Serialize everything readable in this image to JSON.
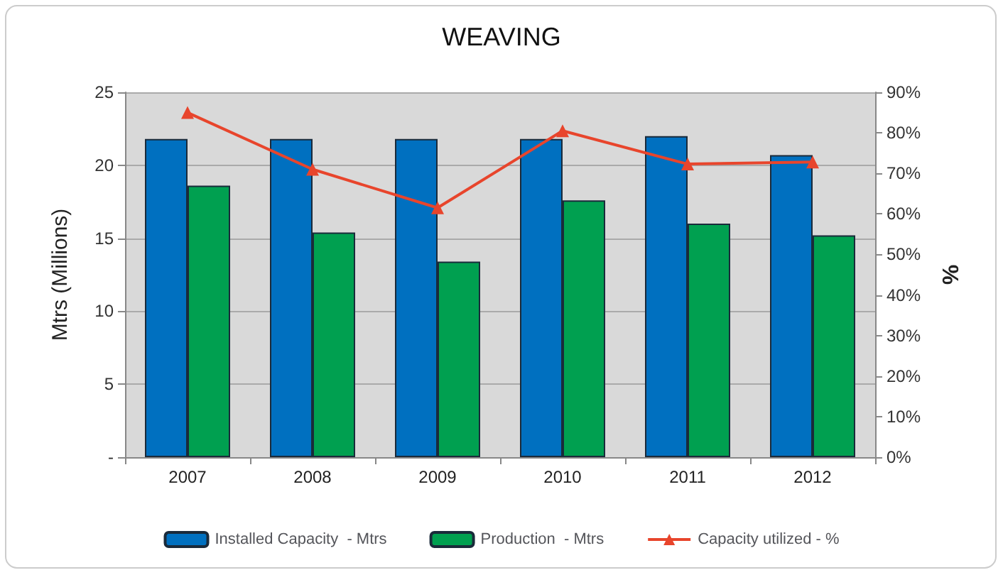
{
  "chart_data": {
    "type": "bar",
    "title": "WEAVING",
    "ylabel": "Mtrs (Millions)",
    "y2label": "%",
    "categories": [
      "2007",
      "2008",
      "2009",
      "2010",
      "2011",
      "2012"
    ],
    "series": [
      {
        "name": "Installed Capacity  - Mtrs",
        "color": "#0070c0",
        "values": [
          21.8,
          21.8,
          21.8,
          21.8,
          22.0,
          20.7
        ]
      },
      {
        "name": "Production  - Mtrs",
        "color": "#00a050",
        "values": [
          18.6,
          15.4,
          13.4,
          17.6,
          16.0,
          15.2
        ]
      },
      {
        "name": "Capacity utilized - %",
        "type": "line",
        "axis": "y2",
        "color": "#e8452c",
        "marker": "triangle",
        "values": [
          85,
          71,
          61.5,
          80.5,
          72.3,
          72.8
        ]
      }
    ],
    "ylim": [
      0,
      25
    ],
    "yticks": [
      {
        "value": 0,
        "label": "-"
      },
      5,
      10,
      15,
      20,
      25
    ],
    "y2lim": [
      0,
      90
    ],
    "y2ticks": [
      {
        "value": 0,
        "label": "0%"
      },
      {
        "value": 10,
        "label": "10%"
      },
      {
        "value": 20,
        "label": "20%"
      },
      {
        "value": 30,
        "label": "30%"
      },
      {
        "value": 40,
        "label": "40%"
      },
      {
        "value": 50,
        "label": "50%"
      },
      {
        "value": 60,
        "label": "60%"
      },
      {
        "value": 70,
        "label": "70%"
      },
      {
        "value": 80,
        "label": "80%"
      },
      {
        "value": 90,
        "label": "90%"
      }
    ],
    "grid": "y",
    "legend": "bottom"
  }
}
